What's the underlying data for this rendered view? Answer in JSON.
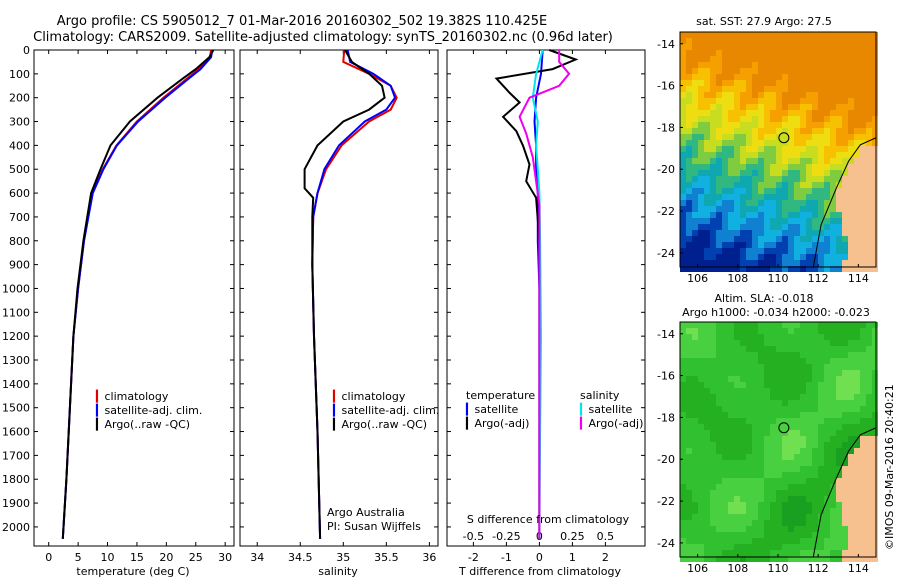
{
  "header": {
    "line1": "Argo profile: CS 5905012_7 01-Mar-2016 20160302_502 19.382S 110.425E",
    "line2": "Climatology: CARS2009. Satellite-adjusted climatology: synTS_20160302.nc (0.96d later)"
  },
  "colors": {
    "climatology": "#e00000",
    "satellite": "#0000ff",
    "argo": "#000000",
    "sat_salinity": "#00e5ee",
    "argo_salinity": "#ee00ee"
  },
  "chart_data": [
    {
      "type": "line",
      "xlabel": "temperature (deg C)",
      "xticks": [
        0,
        5,
        10,
        15,
        20,
        25,
        30
      ],
      "xlim": [
        -2.5,
        31.5
      ],
      "ylim": [
        0,
        2080
      ],
      "yticks": [
        0,
        100,
        200,
        300,
        400,
        500,
        600,
        700,
        800,
        900,
        1000,
        1100,
        1200,
        1300,
        1400,
        1500,
        1600,
        1700,
        1800,
        1900,
        2000
      ],
      "legend": [
        "climatology",
        "satellite-adj. clim.",
        "Argo(..raw -QC)"
      ],
      "series": [
        {
          "name": "climatology",
          "y": [
            0,
            30,
            80,
            120,
            200,
            300,
            400,
            500,
            600,
            800,
            1000,
            1200,
            1500,
            1800,
            2050
          ],
          "values": [
            27.6,
            27.4,
            25.5,
            23.5,
            19.5,
            15.0,
            11.5,
            9.2,
            7.4,
            6.0,
            5.0,
            4.2,
            3.6,
            3.0,
            2.4
          ]
        },
        {
          "name": "satellite-adj. clim.",
          "y": [
            0,
            30,
            80,
            120,
            200,
            300,
            400,
            500,
            600,
            800,
            1000,
            1200,
            1500,
            1800,
            2050
          ],
          "values": [
            27.8,
            27.6,
            25.8,
            23.8,
            19.8,
            15.2,
            11.6,
            9.3,
            7.5,
            6.0,
            5.0,
            4.2,
            3.6,
            3.0,
            2.4
          ]
        },
        {
          "name": "Argo(..raw -QC)",
          "y": [
            0,
            30,
            80,
            120,
            200,
            300,
            400,
            500,
            600,
            800,
            1000,
            1200,
            1500,
            1800,
            2050
          ],
          "values": [
            28.0,
            27.3,
            25.0,
            22.8,
            18.5,
            13.8,
            10.5,
            8.8,
            7.2,
            5.9,
            4.9,
            4.2,
            3.6,
            3.0,
            2.4
          ]
        }
      ]
    },
    {
      "type": "line",
      "xlabel": "salinity",
      "xticks": [
        34,
        34.5,
        35,
        35.5,
        36
      ],
      "xlim": [
        33.8,
        36.1
      ],
      "ylim": [
        0,
        2080
      ],
      "legend": [
        "climatology",
        "satellite-adj. clim.",
        "Argo(..raw -QC)"
      ],
      "annotation": [
        "Argo Australia",
        "PI: Susan Wijffels"
      ],
      "series": [
        {
          "name": "climatology",
          "y": [
            0,
            50,
            100,
            150,
            200,
            250,
            300,
            400,
            500,
            600,
            700,
            900,
            1200,
            1600,
            2050
          ],
          "values": [
            35.01,
            35.0,
            35.3,
            35.55,
            35.62,
            35.55,
            35.3,
            34.98,
            34.8,
            34.7,
            34.65,
            34.64,
            34.66,
            34.7,
            34.73
          ]
        },
        {
          "name": "satellite-adj. clim.",
          "y": [
            0,
            50,
            100,
            150,
            200,
            250,
            300,
            400,
            500,
            600,
            700,
            900,
            1200,
            1600,
            2050
          ],
          "values": [
            35.05,
            35.08,
            35.35,
            35.55,
            35.6,
            35.5,
            35.25,
            34.95,
            34.78,
            34.7,
            34.65,
            34.64,
            34.66,
            34.7,
            34.73
          ]
        },
        {
          "name": "Argo(..raw -QC)",
          "y": [
            0,
            50,
            100,
            150,
            200,
            250,
            300,
            400,
            500,
            580,
            620,
            700,
            900,
            1200,
            1600,
            2050
          ],
          "values": [
            35.02,
            35.1,
            35.3,
            35.45,
            35.48,
            35.3,
            35.0,
            34.7,
            34.55,
            34.55,
            34.65,
            34.64,
            34.64,
            34.66,
            34.7,
            34.73
          ]
        }
      ]
    },
    {
      "type": "line",
      "xlabel": "T difference from climatology",
      "xlabel_top": "S difference from climatology",
      "xticks": [
        -2,
        -1,
        0,
        1,
        2
      ],
      "xticks_top": [
        "-0.5",
        "-0.25",
        "0",
        "0.25",
        "0.5"
      ],
      "xlim": [
        -2.8,
        3.2
      ],
      "ylim": [
        0,
        2080
      ],
      "legend_titles": [
        "temperature",
        "salinity"
      ],
      "legend": [
        "satellite",
        "Argo(-adj)",
        "satellite",
        "Argo(-adj)"
      ],
      "series": [
        {
          "name": "satellite",
          "y": [
            0,
            100,
            200,
            300,
            400,
            500,
            600,
            800,
            1000,
            1500,
            2050
          ],
          "values": [
            0.1,
            0.05,
            -0.1,
            -0.15,
            -0.1,
            -0.1,
            -0.05,
            -0.05,
            0,
            0,
            0
          ]
        },
        {
          "name": "Argo(-adj)",
          "y": [
            0,
            40,
            80,
            120,
            180,
            220,
            280,
            340,
            400,
            480,
            550,
            620,
            800,
            1100,
            1500,
            2050
          ],
          "values": [
            0.3,
            1.1,
            0.4,
            -1.3,
            -0.9,
            -0.6,
            -1.1,
            -0.7,
            -0.5,
            -0.3,
            -0.4,
            -0.1,
            0,
            0,
            0,
            0
          ]
        },
        {
          "name": "satellite",
          "y": [
            0,
            100,
            200,
            300,
            400,
            500,
            600,
            800,
            1200,
            1600,
            2050
          ],
          "values": [
            0.1,
            -0.1,
            -0.2,
            -0.05,
            -0.1,
            -0.05,
            0,
            0.02,
            0.05,
            0.02,
            0
          ]
        },
        {
          "name": "Argo(-adj)",
          "y": [
            0,
            50,
            100,
            150,
            200,
            280,
            350,
            450,
            550,
            650,
            800,
            1000,
            1500,
            2050
          ],
          "values": [
            0.6,
            0.6,
            0.9,
            0.6,
            -0.3,
            -0.6,
            -0.4,
            -0.2,
            -0.1,
            0,
            0,
            0,
            0,
            0
          ]
        }
      ]
    }
  ],
  "maps": {
    "sst": {
      "title": "sat. SST: 27.9 Argo: 27.5",
      "xticks": [
        "106",
        "108",
        "110",
        "112",
        "114"
      ],
      "yticks": [
        "-14",
        "-16",
        "-18",
        "-20",
        "-22",
        "-24"
      ]
    },
    "sla": {
      "title1": "Altim. SLA: -0.018",
      "title2": "Argo h1000: -0.034 h2000: -0.023",
      "xticks": [
        "106",
        "108",
        "110",
        "112",
        "114"
      ],
      "yticks": [
        "-14",
        "-16",
        "-18",
        "-20",
        "-22",
        "-24"
      ]
    },
    "footer": "©IMOS 09-Mar-2016 20:40:21"
  }
}
